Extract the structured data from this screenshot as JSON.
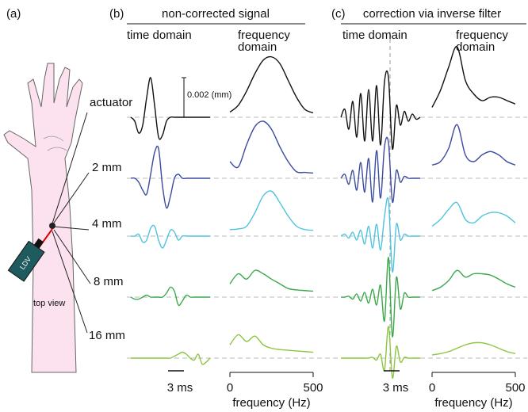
{
  "panel_a": {
    "label": "(a)",
    "rows": [
      "actuator",
      "2 mm",
      "4 mm",
      "8 mm",
      "16 mm"
    ],
    "device": "LDV",
    "view": "top view"
  },
  "panels": [
    {
      "label": "(b)",
      "title": "non-corrected signal"
    },
    {
      "label": "(c)",
      "title": "correction via inverse filter"
    }
  ],
  "chart_data": [
    {
      "type": "line",
      "subtitle": "time domain",
      "time_scale_label": "3 ms",
      "amp_scale": {
        "value": 0.002,
        "label": "0.002 (mm)"
      },
      "ylim": [
        -0.002,
        0.002
      ],
      "series": [
        {
          "color": "#111111",
          "values": [
            0,
            -0.0002,
            -0.0008,
            -0.0004,
            0.001,
            0.002,
            0.0006,
            -0.001,
            -0.0009,
            -0.0002,
            0,
            0,
            0,
            0,
            0,
            0,
            0,
            0,
            0,
            0,
            0
          ]
        },
        {
          "color": "#3b4b9e",
          "values": [
            0,
            0,
            -0.0002,
            -0.0006,
            -0.0008,
            0.0002,
            0.0013,
            0.0015,
            -0.0004,
            -0.0015,
            -0.0009,
            0,
            0.0002,
            0,
            0,
            0,
            0,
            0,
            0,
            0,
            0
          ]
        },
        {
          "color": "#4fc3dd",
          "values": [
            0,
            0,
            0.0001,
            -0.0003,
            -0.0002,
            0.0004,
            0.0005,
            -0.0002,
            -0.0006,
            -0.0002,
            0.0003,
            0.0002,
            -0.0002,
            0,
            0,
            0,
            0,
            0,
            0,
            0,
            0
          ]
        },
        {
          "color": "#3aa94b",
          "values": [
            0,
            -0.0001,
            -0.0001,
            0,
            0.0001,
            0,
            0,
            0,
            0,
            0.0002,
            0.0005,
            0.0003,
            -0.0004,
            -0.0002,
            0.0001,
            0,
            0,
            0,
            0,
            0,
            0
          ]
        },
        {
          "color": "#8cc63f",
          "values": [
            0,
            0,
            0,
            0,
            0,
            0,
            0,
            0,
            0,
            0,
            0,
            0.0001,
            0.0002,
            0.0003,
            0.0002,
            0,
            -0.0001,
            0.0002,
            -0.0003,
            -0.0002,
            0
          ]
        }
      ]
    },
    {
      "type": "spectrum",
      "subtitle": "frequency domain",
      "xlabel": "frequency (Hz)",
      "xlim": [
        0,
        500
      ],
      "xticks": [
        0,
        500
      ],
      "ylim": [
        0,
        1
      ],
      "x": [
        0,
        50,
        100,
        150,
        200,
        250,
        300,
        350,
        400,
        450,
        500
      ],
      "series": [
        {
          "color": "#111111",
          "values": [
            0.03,
            0.13,
            0.34,
            0.6,
            0.8,
            0.85,
            0.75,
            0.5,
            0.25,
            0.07,
            0.02
          ]
        },
        {
          "color": "#3b4b9e",
          "values": [
            0.2,
            0.12,
            0.45,
            0.72,
            0.8,
            0.68,
            0.42,
            0.2,
            0.05,
            0.04,
            0.03
          ]
        },
        {
          "color": "#4fc3dd",
          "values": [
            0.05,
            0.06,
            0.1,
            0.3,
            0.55,
            0.62,
            0.45,
            0.25,
            0.1,
            0.05,
            0.04
          ]
        },
        {
          "color": "#3aa94b",
          "values": [
            0.15,
            0.3,
            0.22,
            0.35,
            0.3,
            0.22,
            0.15,
            0.08,
            0.06,
            0.05,
            0.04
          ]
        },
        {
          "color": "#8cc63f",
          "values": [
            0.15,
            0.3,
            0.2,
            0.28,
            0.15,
            0.1,
            0.08,
            0.07,
            0.06,
            0.05,
            0.04
          ]
        }
      ]
    },
    {
      "type": "line",
      "subtitle": "time domain",
      "time_scale_label": "3 ms",
      "ylim": [
        -1,
        1
      ],
      "series": [
        {
          "color": "#111111",
          "values": [
            0,
            0.2,
            -0.3,
            0.4,
            -0.5,
            0.6,
            -0.6,
            0.7,
            -0.6,
            0.8,
            -0.7,
            0.9,
            1,
            -0.8,
            0.3,
            -0.2,
            0.15,
            -0.1,
            0.08,
            -0.05,
            0
          ]
        },
        {
          "color": "#3b4b9e",
          "values": [
            0,
            0.1,
            -0.15,
            0.2,
            -0.3,
            0.4,
            -0.35,
            0.5,
            -0.6,
            0.7,
            -0.5,
            0.8,
            0.9,
            -0.6,
            0.2,
            -0.1,
            0.05,
            0,
            0,
            0,
            0
          ]
        },
        {
          "color": "#4fc3dd",
          "values": [
            0,
            0.05,
            -0.05,
            0.1,
            -0.1,
            0.15,
            -0.2,
            0.25,
            -0.3,
            0.3,
            -0.35,
            0.5,
            0.9,
            -0.9,
            0.3,
            -0.1,
            0.05,
            0,
            0,
            0,
            0
          ]
        },
        {
          "color": "#3aa94b",
          "values": [
            0,
            0,
            0.02,
            -0.05,
            0.08,
            -0.1,
            0.12,
            -0.15,
            0.2,
            -0.2,
            0.3,
            -0.6,
            1,
            -1,
            0.5,
            -0.3,
            0.1,
            0,
            0,
            0,
            0
          ]
        },
        {
          "color": "#8cc63f",
          "values": [
            0,
            0,
            0,
            0,
            0,
            0,
            0,
            0,
            0.02,
            -0.05,
            0.1,
            -0.3,
            0.8,
            -0.5,
            0.3,
            -0.1,
            0.02,
            0,
            0,
            0,
            0
          ]
        }
      ]
    },
    {
      "type": "spectrum",
      "subtitle": "frequency domain",
      "xlabel": "frequency (Hz)",
      "xlim": [
        0,
        500
      ],
      "xticks": [
        0,
        500
      ],
      "ylim": [
        0,
        1
      ],
      "x": [
        0,
        50,
        100,
        150,
        200,
        250,
        300,
        350,
        400,
        450,
        500
      ],
      "series": [
        {
          "color": "#111111",
          "values": [
            0.1,
            0.35,
            0.7,
            1,
            0.5,
            0.3,
            0.2,
            0.25,
            0.25,
            0.2,
            0.15
          ]
        },
        {
          "color": "#3b4b9e",
          "values": [
            0.15,
            0.2,
            0.4,
            0.75,
            0.3,
            0.2,
            0.3,
            0.35,
            0.3,
            0.2,
            0.15
          ]
        },
        {
          "color": "#4fc3dd",
          "values": [
            0.1,
            0.2,
            0.35,
            0.45,
            0.2,
            0.15,
            0.25,
            0.3,
            0.3,
            0.25,
            0.15
          ]
        },
        {
          "color": "#3aa94b",
          "values": [
            0.05,
            0.1,
            0.2,
            0.35,
            0.25,
            0.3,
            0.3,
            0.28,
            0.22,
            0.15,
            0.1
          ]
        },
        {
          "color": "#8cc63f",
          "values": [
            0,
            0.02,
            0.05,
            0.1,
            0.15,
            0.18,
            0.18,
            0.15,
            0.1,
            0.05,
            0.02
          ]
        }
      ]
    }
  ]
}
